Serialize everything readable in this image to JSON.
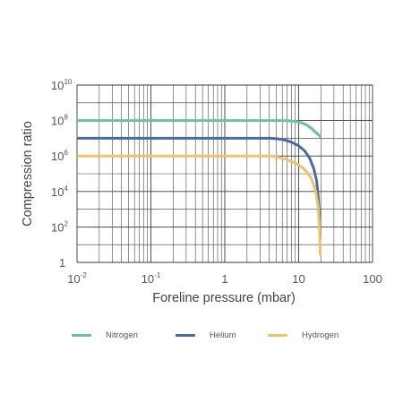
{
  "chart_data": {
    "type": "line",
    "title": "",
    "xlabel": "Foreline pressure (mbar)",
    "ylabel": "Compression ratio",
    "xscale": "log",
    "yscale": "log",
    "xlim": [
      0.01,
      100
    ],
    "ylim": [
      1,
      10000000000
    ],
    "grid": true,
    "legend_position": "bottom",
    "x_ticks": [
      {
        "base": "10",
        "exp": "-2",
        "value": 0.01
      },
      {
        "base": "10",
        "exp": "-1",
        "value": 0.1
      },
      {
        "base": "1",
        "exp": "",
        "value": 1
      },
      {
        "base": "10",
        "exp": "",
        "value": 10
      },
      {
        "base": "100",
        "exp": "",
        "value": 100
      }
    ],
    "y_ticks": [
      {
        "base": "10",
        "exp": "10",
        "value": 10000000000
      },
      {
        "base": "10",
        "exp": "8",
        "value": 100000000
      },
      {
        "base": "10",
        "exp": "6",
        "value": 1000000
      },
      {
        "base": "10",
        "exp": "4",
        "value": 10000
      },
      {
        "base": "10",
        "exp": "2",
        "value": 100
      },
      {
        "base": "1",
        "exp": "",
        "value": 1
      }
    ],
    "series": [
      {
        "name": "Nitrogen",
        "color": "#6cc1a4",
        "x": [
          0.01,
          1,
          5,
          7,
          9,
          11,
          13,
          15,
          17,
          19.5,
          19.5
        ],
        "y": [
          100000000,
          100000000,
          100000000,
          98000000,
          90000000,
          75000000,
          55000000,
          35000000,
          22000000,
          13000000,
          10000000
        ]
      },
      {
        "name": "Helium",
        "color": "#4a6aa5",
        "x": [
          0.01,
          1,
          4.2,
          5,
          6,
          7,
          8,
          10,
          12,
          14,
          16,
          17.5,
          18.5,
          19.2,
          19.6
        ],
        "y": [
          10000000,
          10000000,
          10000000,
          9500000,
          8600000,
          7300000,
          6000000,
          3800000,
          2000000,
          800000,
          200000,
          40000,
          4000,
          300,
          20
        ]
      },
      {
        "name": "Hydrogen",
        "color": "#f0c26a",
        "x": [
          0.01,
          1,
          3.8,
          4.5,
          5.5,
          7,
          9,
          11,
          13,
          15,
          17,
          18.3,
          19,
          19.4,
          19.5,
          19.5
        ],
        "y": [
          1000000,
          1000000,
          1000000,
          950000,
          820000,
          620000,
          400000,
          240000,
          120000,
          50000,
          10000,
          1500,
          150,
          20,
          5,
          2.5
        ]
      }
    ]
  }
}
